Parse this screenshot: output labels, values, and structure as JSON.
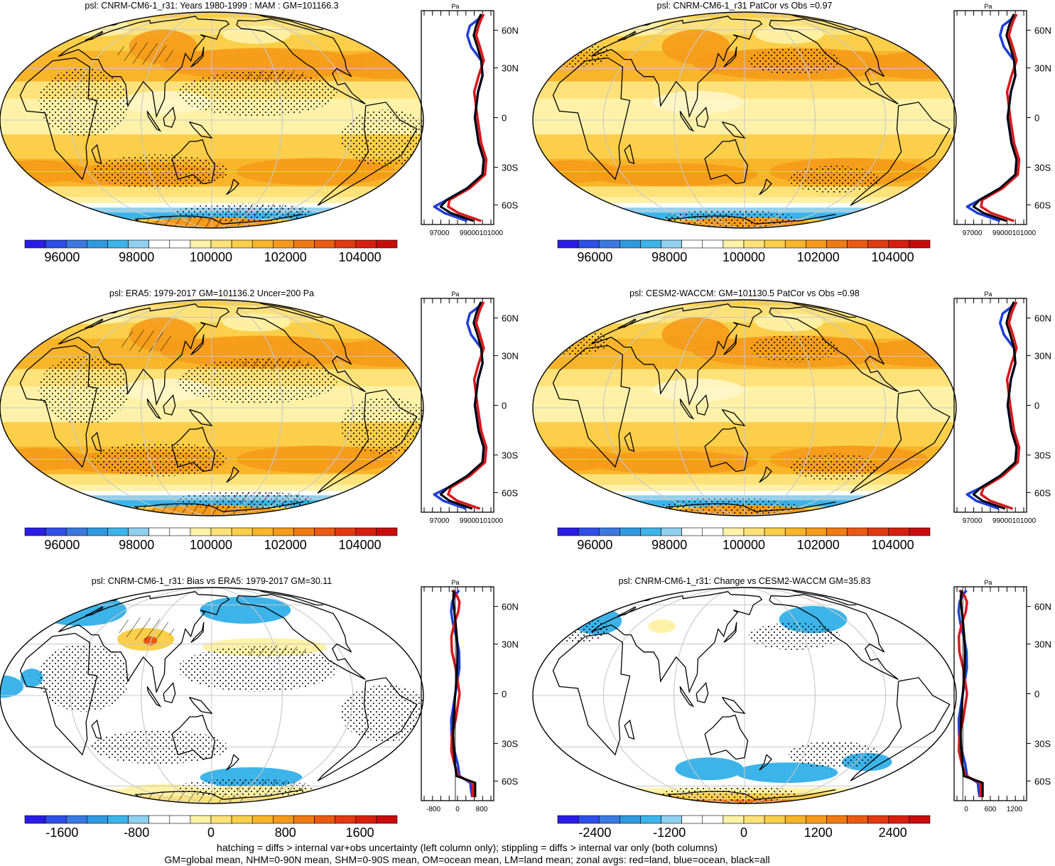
{
  "panels": [
    {
      "title": "psl: CNRM-CM6-1_r31: Years 1980-1999 : MAM : GM=101166.3",
      "kind": "abs",
      "colorbar": {
        "levels": [
          95000,
          96000,
          97000,
          98000,
          99000,
          100000,
          101000,
          102000,
          103000,
          104000,
          105000
        ],
        "labels": [
          "96000",
          "98000",
          "100000",
          "102000",
          "104000"
        ],
        "label_values": [
          96000,
          98000,
          100000,
          102000,
          104000
        ]
      },
      "profile": {
        "ticks": [
          "97000",
          "99000101000"
        ]
      }
    },
    {
      "title": "psl: CNRM-CM6-1_r31 PatCor vs Obs =0.97",
      "kind": "abs",
      "colorbar": {
        "levels": [
          95000,
          96000,
          97000,
          98000,
          99000,
          100000,
          101000,
          102000,
          103000,
          104000,
          105000
        ],
        "labels": [
          "96000",
          "98000",
          "100000",
          "102000",
          "104000"
        ],
        "label_values": [
          96000,
          98000,
          100000,
          102000,
          104000
        ]
      },
      "profile": {
        "ticks": [
          "97000",
          "99000101000"
        ]
      }
    },
    {
      "title": "psl: ERA5: 1979-2017 GM=101136.2 Uncer=200 Pa",
      "kind": "abs",
      "colorbar": {
        "levels": [
          95000,
          96000,
          97000,
          98000,
          99000,
          100000,
          101000,
          102000,
          103000,
          104000,
          105000
        ],
        "labels": [
          "96000",
          "98000",
          "100000",
          "102000",
          "104000"
        ],
        "label_values": [
          96000,
          98000,
          100000,
          102000,
          104000
        ]
      },
      "profile": {
        "ticks": [
          "97000",
          "99000101000"
        ]
      }
    },
    {
      "title": "psl: CESM2-WACCM: GM=101130.5 PatCor vs Obs =0.98",
      "kind": "abs",
      "colorbar": {
        "levels": [
          95000,
          96000,
          97000,
          98000,
          99000,
          100000,
          101000,
          102000,
          103000,
          104000,
          105000
        ],
        "labels": [
          "96000",
          "98000",
          "100000",
          "102000",
          "104000"
        ],
        "label_values": [
          96000,
          98000,
          100000,
          102000,
          104000
        ]
      },
      "profile": {
        "ticks": [
          "97000",
          "99000101000"
        ]
      }
    },
    {
      "title": "psl: CNRM-CM6-1_r31: Bias vs ERA5: 1979-2017 GM=30.11",
      "kind": "bias",
      "colorbar": {
        "levels": [
          -2000,
          -1600,
          -1200,
          -800,
          -400,
          0,
          400,
          800,
          1200,
          1600,
          2000
        ],
        "labels": [
          "-1600",
          "-800",
          "0",
          "800",
          "1600"
        ],
        "label_values": [
          -1600,
          -800,
          0,
          800,
          1600
        ]
      },
      "profile": {
        "ticks": [
          "-800",
          "0",
          "800"
        ]
      }
    },
    {
      "title": "psl: CNRM-CM6-1_r31: Change vs CESM2-WACCM GM=35.83",
      "kind": "change",
      "colorbar": {
        "levels": [
          -3000,
          -2400,
          -1800,
          -1200,
          -600,
          0,
          600,
          1200,
          1800,
          2400,
          3000
        ],
        "labels": [
          "-2400",
          "-1200",
          "0",
          "1200",
          "2400"
        ],
        "label_values": [
          -2400,
          -1200,
          0,
          1200,
          2400
        ]
      },
      "profile": {
        "ticks": [
          "0",
          "600",
          "1200"
        ]
      }
    }
  ],
  "lat_labels": [
    "60N",
    "30N",
    "0",
    "30S",
    "60S"
  ],
  "profile_unit": "Pa",
  "footnotes": [
    "hatching = diffs > internal var+obs uncertainty (left column only); stippling = diffs > internal var only (both columns)",
    "GM=global mean, NHM=0-90N mean, SHM=0-90S mean, OM=ocean mean, LM=land mean; zonal avgs: red=land, blue=ocean, black=all"
  ],
  "colors": {
    "land_line": "#d7191c",
    "ocean_line": "#1f3fd8",
    "all_line": "#000000",
    "palette": [
      "#2a1ee6",
      "#2f4fe8",
      "#3b78e0",
      "#2e9ae0",
      "#3cb4ea",
      "#8fd0ef",
      "#ffffff",
      "#ffffff",
      "#fff2a8",
      "#fde27a",
      "#fbcf4a",
      "#f8b52a",
      "#f59a1a",
      "#f07a14",
      "#ea5a12",
      "#e23a10",
      "#d81e0e",
      "#c80c0c"
    ]
  },
  "chart_data": [
    {
      "type": "heatmap",
      "title": "psl: CNRM-CM6-1_r31: Years 1980-1999 : MAM : GM=101166.3",
      "global_mean": 101166.3,
      "zonal_profile": {
        "lat": [
          -88,
          -70,
          -62,
          -55,
          -45,
          -35,
          -25,
          -15,
          0,
          15,
          25,
          35,
          45,
          55,
          65,
          75,
          88
        ],
        "all": [
          100900,
          99100,
          98300,
          98800,
          100400,
          101600,
          101700,
          101300,
          101000,
          101250,
          101600,
          101500,
          101200,
          100900,
          101100,
          101300,
          101500
        ]
      }
    },
    {
      "type": "heatmap",
      "title": "psl: CNRM-CM6-1_r31 PatCor vs Obs =0.97",
      "pattern_correlation": 0.97
    },
    {
      "type": "heatmap",
      "title": "psl: ERA5: 1979-2017 GM=101136.2 Uncer=200 Pa",
      "global_mean": 101136.2,
      "uncertainty": 200,
      "zonal_profile": {
        "lat": [
          -88,
          -70,
          -62,
          -55,
          -45,
          -35,
          -25,
          -15,
          0,
          15,
          25,
          35,
          45,
          55,
          65,
          75,
          88
        ],
        "all": [
          100800,
          99000,
          98300,
          98900,
          100400,
          101600,
          101700,
          101300,
          101000,
          101250,
          101600,
          101500,
          101200,
          100900,
          101100,
          101300,
          101500
        ]
      }
    },
    {
      "type": "heatmap",
      "title": "psl: CESM2-WACCM: GM=101130.5 PatCor vs Obs =0.98",
      "global_mean": 101130.5,
      "pattern_correlation": 0.98
    },
    {
      "type": "heatmap",
      "title": "psl: CNRM-CM6-1_r31: Bias vs ERA5: 1979-2017 GM=30.11",
      "global_mean": 30.11
    },
    {
      "type": "heatmap",
      "title": "psl: CNRM-CM6-1_r31: Change vs CESM2-WACCM GM=35.83",
      "global_mean": 35.83
    }
  ]
}
